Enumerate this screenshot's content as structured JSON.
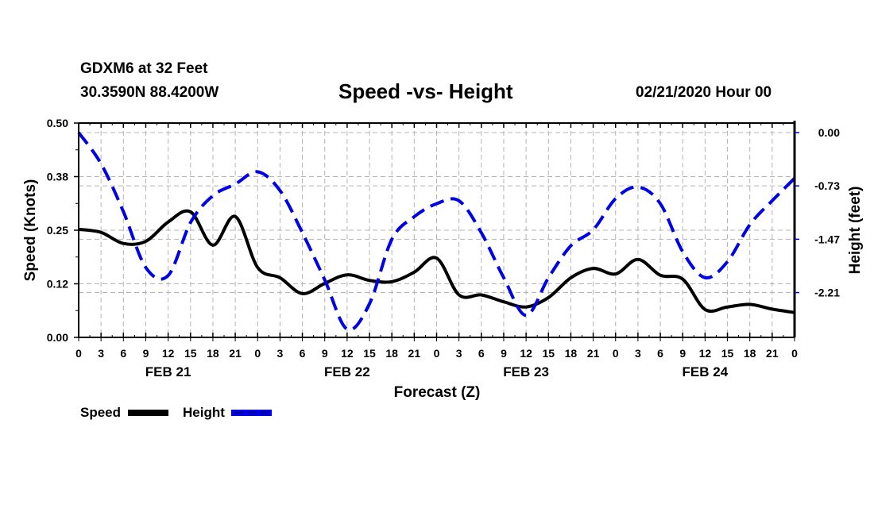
{
  "header": {
    "station": "GDXM6 at 32 Feet",
    "coordinates": "30.3590N 88.4200W",
    "title": "Speed -vs- Height",
    "date": "02/21/2020 Hour 00"
  },
  "legend": {
    "position": "bottom-left",
    "items": [
      {
        "label": "Speed",
        "color": "#000000",
        "style": "solid"
      },
      {
        "label": "Height",
        "color": "#0000e6",
        "style": "dashed"
      }
    ]
  },
  "chart_data": {
    "type": "line",
    "title": "Speed -vs- Height",
    "xlabel": "Forecast (Z)",
    "ylabel": "Speed (Knots)",
    "y2label": "Height (feet)",
    "grid": true,
    "x_unit": "forecast hours from 02/21/2020 00Z",
    "xlim": [
      0,
      96
    ],
    "ylim": [
      0.0,
      0.5
    ],
    "y2lim": [
      -2.82,
      0.12
    ],
    "y_ticks": [
      "0.00",
      "0.12",
      "0.25",
      "0.38",
      "0.50"
    ],
    "y_tick_values": [
      0.0,
      0.125,
      0.25,
      0.375,
      0.5
    ],
    "y2_ticks": [
      "0.00",
      "-0.73",
      "-1.47",
      "-2.21"
    ],
    "y2_tick_values": [
      0.0,
      -0.735,
      -1.47,
      -2.205
    ],
    "x_ticks": [
      "0",
      "3",
      "6",
      "9",
      "12",
      "15",
      "18",
      "21",
      "0",
      "3",
      "6",
      "9",
      "12",
      "15",
      "18",
      "21",
      "0",
      "3",
      "6",
      "9",
      "12",
      "15",
      "18",
      "21",
      "0",
      "3",
      "6",
      "9",
      "12",
      "15",
      "18",
      "21",
      "0"
    ],
    "day_labels": [
      {
        "label": "FEB 21",
        "hour": 12
      },
      {
        "label": "FEB 22",
        "hour": 36
      },
      {
        "label": "FEB 23",
        "hour": 60
      },
      {
        "label": "FEB 24",
        "hour": 84
      }
    ],
    "x": [
      0,
      3,
      6,
      9,
      12,
      15,
      18,
      21,
      24,
      27,
      30,
      33,
      36,
      39,
      42,
      45,
      48,
      51,
      54,
      57,
      60,
      63,
      66,
      69,
      72,
      75,
      78,
      81,
      84,
      87,
      90,
      93,
      96
    ],
    "series": [
      {
        "name": "Speed",
        "axis": "left",
        "color": "#000000",
        "values": [
          0.252,
          0.245,
          0.219,
          0.224,
          0.269,
          0.293,
          0.215,
          0.282,
          0.163,
          0.139,
          0.102,
          0.126,
          0.146,
          0.133,
          0.13,
          0.152,
          0.185,
          0.099,
          0.099,
          0.083,
          0.071,
          0.093,
          0.139,
          0.161,
          0.148,
          0.182,
          0.145,
          0.136,
          0.065,
          0.071,
          0.077,
          0.066,
          0.058
        ]
      },
      {
        "name": "Height",
        "axis": "right",
        "color": "#0000e6",
        "values": [
          0.0,
          -0.43,
          -1.09,
          -1.86,
          -1.97,
          -1.24,
          -0.87,
          -0.71,
          -0.54,
          -0.8,
          -1.38,
          -2.03,
          -2.71,
          -2.36,
          -1.47,
          -1.16,
          -0.98,
          -0.94,
          -1.38,
          -2.0,
          -2.52,
          -2.0,
          -1.56,
          -1.34,
          -0.91,
          -0.75,
          -0.98,
          -1.64,
          -2.0,
          -1.78,
          -1.27,
          -0.94,
          -0.63
        ]
      }
    ]
  }
}
